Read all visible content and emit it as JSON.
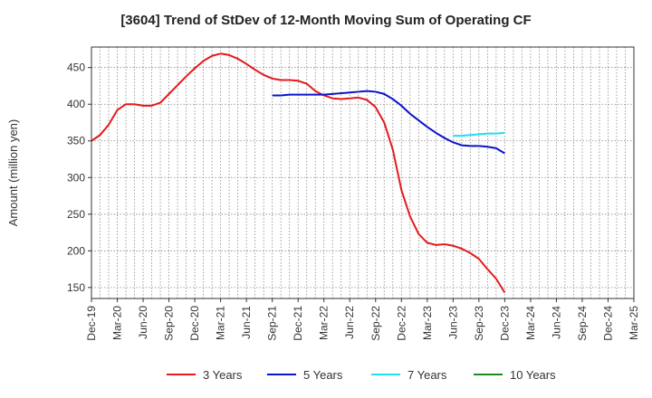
{
  "chart_data": {
    "type": "line",
    "title": "[3604]  Trend of StDev of 12-Month Moving Sum of Operating CF",
    "ylabel": "Amount (million yen)",
    "xlabel": "",
    "ylim": [
      135,
      478
    ],
    "yticks": [
      150,
      200,
      250,
      300,
      350,
      400,
      450
    ],
    "x_ticks": [
      "Dec-19",
      "Mar-20",
      "Jun-20",
      "Sep-20",
      "Dec-20",
      "Mar-21",
      "Jun-21",
      "Sep-21",
      "Dec-21",
      "Mar-22",
      "Jun-22",
      "Sep-22",
      "Dec-22",
      "Mar-23",
      "Jun-23",
      "Sep-23",
      "Dec-23",
      "Mar-24",
      "Jun-24",
      "Sep-24",
      "Dec-24",
      "Mar-25"
    ],
    "grid": true,
    "legend_position": "bottom",
    "series": [
      {
        "name": "3 Years",
        "color": "#e41a1c",
        "points": [
          [
            "Dec-19",
            350
          ],
          [
            "Jan-20",
            358
          ],
          [
            "Feb-20",
            372
          ],
          [
            "Mar-20",
            392
          ],
          [
            "Apr-20",
            400
          ],
          [
            "May-20",
            400
          ],
          [
            "Jun-20",
            398
          ],
          [
            "Jul-20",
            398
          ],
          [
            "Aug-20",
            402
          ],
          [
            "Sep-20",
            414
          ],
          [
            "Oct-20",
            426
          ],
          [
            "Nov-20",
            438
          ],
          [
            "Dec-20",
            449
          ],
          [
            "Jan-21",
            459
          ],
          [
            "Feb-21",
            466
          ],
          [
            "Mar-21",
            469
          ],
          [
            "Apr-21",
            467
          ],
          [
            "May-21",
            462
          ],
          [
            "Jun-21",
            455
          ],
          [
            "Jul-21",
            447
          ],
          [
            "Aug-21",
            440
          ],
          [
            "Sep-21",
            435
          ],
          [
            "Oct-21",
            433
          ],
          [
            "Nov-21",
            433
          ],
          [
            "Dec-21",
            432
          ],
          [
            "Jan-22",
            428
          ],
          [
            "Feb-22",
            418
          ],
          [
            "Mar-22",
            412
          ],
          [
            "Apr-22",
            408
          ],
          [
            "May-22",
            407
          ],
          [
            "Jun-22",
            408
          ],
          [
            "Jul-22",
            409
          ],
          [
            "Aug-22",
            406
          ],
          [
            "Sep-22",
            396
          ],
          [
            "Oct-22",
            375
          ],
          [
            "Nov-22",
            338
          ],
          [
            "Dec-22",
            283
          ],
          [
            "Jan-23",
            247
          ],
          [
            "Feb-23",
            223
          ],
          [
            "Mar-23",
            211
          ],
          [
            "Apr-23",
            208
          ],
          [
            "May-23",
            209
          ],
          [
            "Jun-23",
            207
          ],
          [
            "Jul-23",
            203
          ],
          [
            "Aug-23",
            197
          ],
          [
            "Sep-23",
            189
          ],
          [
            "Oct-23",
            175
          ],
          [
            "Nov-23",
            162
          ],
          [
            "Dec-23",
            143
          ]
        ]
      },
      {
        "name": "5 Years",
        "color": "#0a14c8",
        "points": [
          [
            "Sep-21",
            412
          ],
          [
            "Oct-21",
            412
          ],
          [
            "Nov-21",
            413
          ],
          [
            "Dec-21",
            413
          ],
          [
            "Jan-22",
            413
          ],
          [
            "Feb-22",
            413
          ],
          [
            "Mar-22",
            413
          ],
          [
            "Apr-22",
            414
          ],
          [
            "May-22",
            415
          ],
          [
            "Jun-22",
            416
          ],
          [
            "Jul-22",
            417
          ],
          [
            "Aug-22",
            418
          ],
          [
            "Sep-22",
            417
          ],
          [
            "Oct-22",
            414
          ],
          [
            "Nov-22",
            407
          ],
          [
            "Dec-22",
            398
          ],
          [
            "Jan-23",
            387
          ],
          [
            "Feb-23",
            378
          ],
          [
            "Mar-23",
            369
          ],
          [
            "Apr-23",
            361
          ],
          [
            "May-23",
            354
          ],
          [
            "Jun-23",
            348
          ],
          [
            "Jul-23",
            344
          ],
          [
            "Aug-23",
            343
          ],
          [
            "Sep-23",
            343
          ],
          [
            "Oct-23",
            342
          ],
          [
            "Nov-23",
            340
          ],
          [
            "Dec-23",
            333
          ]
        ]
      },
      {
        "name": "7 Years",
        "color": "#1ee0f0",
        "points": [
          [
            "Jun-23",
            357
          ],
          [
            "Jul-23",
            357
          ],
          [
            "Aug-23",
            358
          ],
          [
            "Sep-23",
            359
          ],
          [
            "Oct-23",
            360
          ],
          [
            "Nov-23",
            360
          ],
          [
            "Dec-23",
            361
          ]
        ]
      },
      {
        "name": "10 Years",
        "color": "#1e8c1e",
        "points": []
      }
    ]
  }
}
